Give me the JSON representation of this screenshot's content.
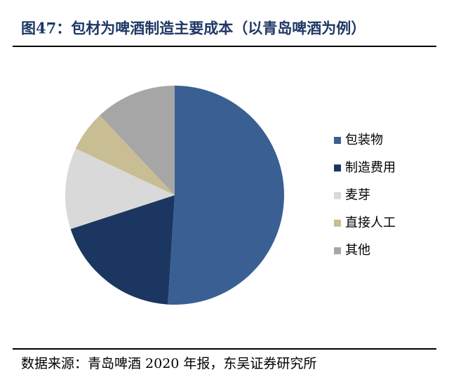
{
  "chart_data": {
    "type": "pie",
    "title": "图47：包材为啤酒制造主要成本（以青岛啤酒为例）",
    "categories": [
      "包装物",
      "制造费用",
      "麦芽",
      "直接人工",
      "其他"
    ],
    "values": [
      51,
      19,
      12,
      6,
      12
    ],
    "colors": [
      "#3a5f93",
      "#1b3660",
      "#d9d9d9",
      "#c8bd93",
      "#a6a6a6"
    ],
    "legend": "right",
    "source": "数据来源：青岛啤酒 2020 年报，东吴证券研究所"
  }
}
